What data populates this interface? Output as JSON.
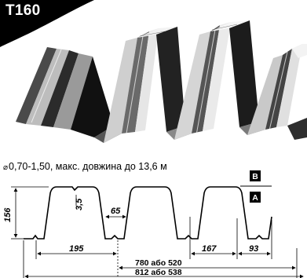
{
  "title": "T160",
  "spec": {
    "symbol": "⌀",
    "text": "0,70-1,50, макс. довжина до 13,6 м"
  },
  "dimensions": {
    "height": "156",
    "rib": "3,5",
    "top_width": "65",
    "pitch": "195",
    "inner_bottom": "167",
    "edge": "93",
    "cover_width": "780 або 520",
    "total_width": "812 або 538"
  },
  "markers": {
    "a": "A",
    "b": "B"
  },
  "colors": {
    "metal_dark": "#1a1a1a",
    "metal_mid": "#777777",
    "metal_light": "#d8d8d8"
  }
}
